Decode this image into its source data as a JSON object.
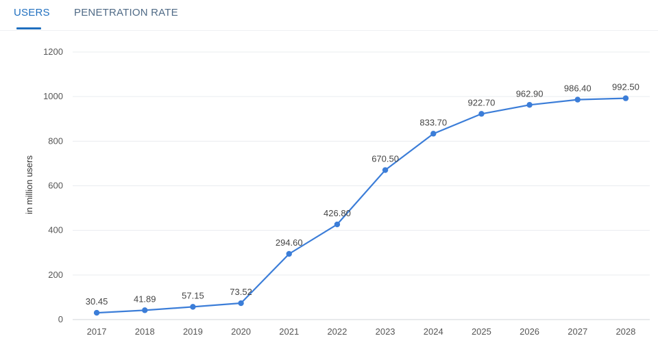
{
  "tabs": [
    {
      "label": "USERS",
      "active": true
    },
    {
      "label": "PENETRATION RATE",
      "active": false
    }
  ],
  "colors": {
    "accent": "#1f6fbf",
    "line": "#3b7dd8",
    "grid": "#e9ecef"
  },
  "chart_data": {
    "type": "line",
    "title": "",
    "xlabel": "",
    "ylabel": "in million users",
    "ylim": [
      0,
      1200
    ],
    "yticks": [
      0,
      200,
      400,
      600,
      800,
      1000,
      1200
    ],
    "grid": true,
    "categories": [
      "2017",
      "2018",
      "2019",
      "2020",
      "2021",
      "2022",
      "2023",
      "2024",
      "2025",
      "2026",
      "2027",
      "2028"
    ],
    "series": [
      {
        "values": [
          30.45,
          41.89,
          57.15,
          73.52,
          294.6,
          426.8,
          670.5,
          833.7,
          922.7,
          962.9,
          986.4,
          992.5
        ],
        "labels": [
          "30.45",
          "41.89",
          "57.15",
          "73.52",
          "294.60",
          "426.80",
          "670.50",
          "833.70",
          "922.70",
          "962.90",
          "986.40",
          "992.50"
        ]
      }
    ]
  }
}
